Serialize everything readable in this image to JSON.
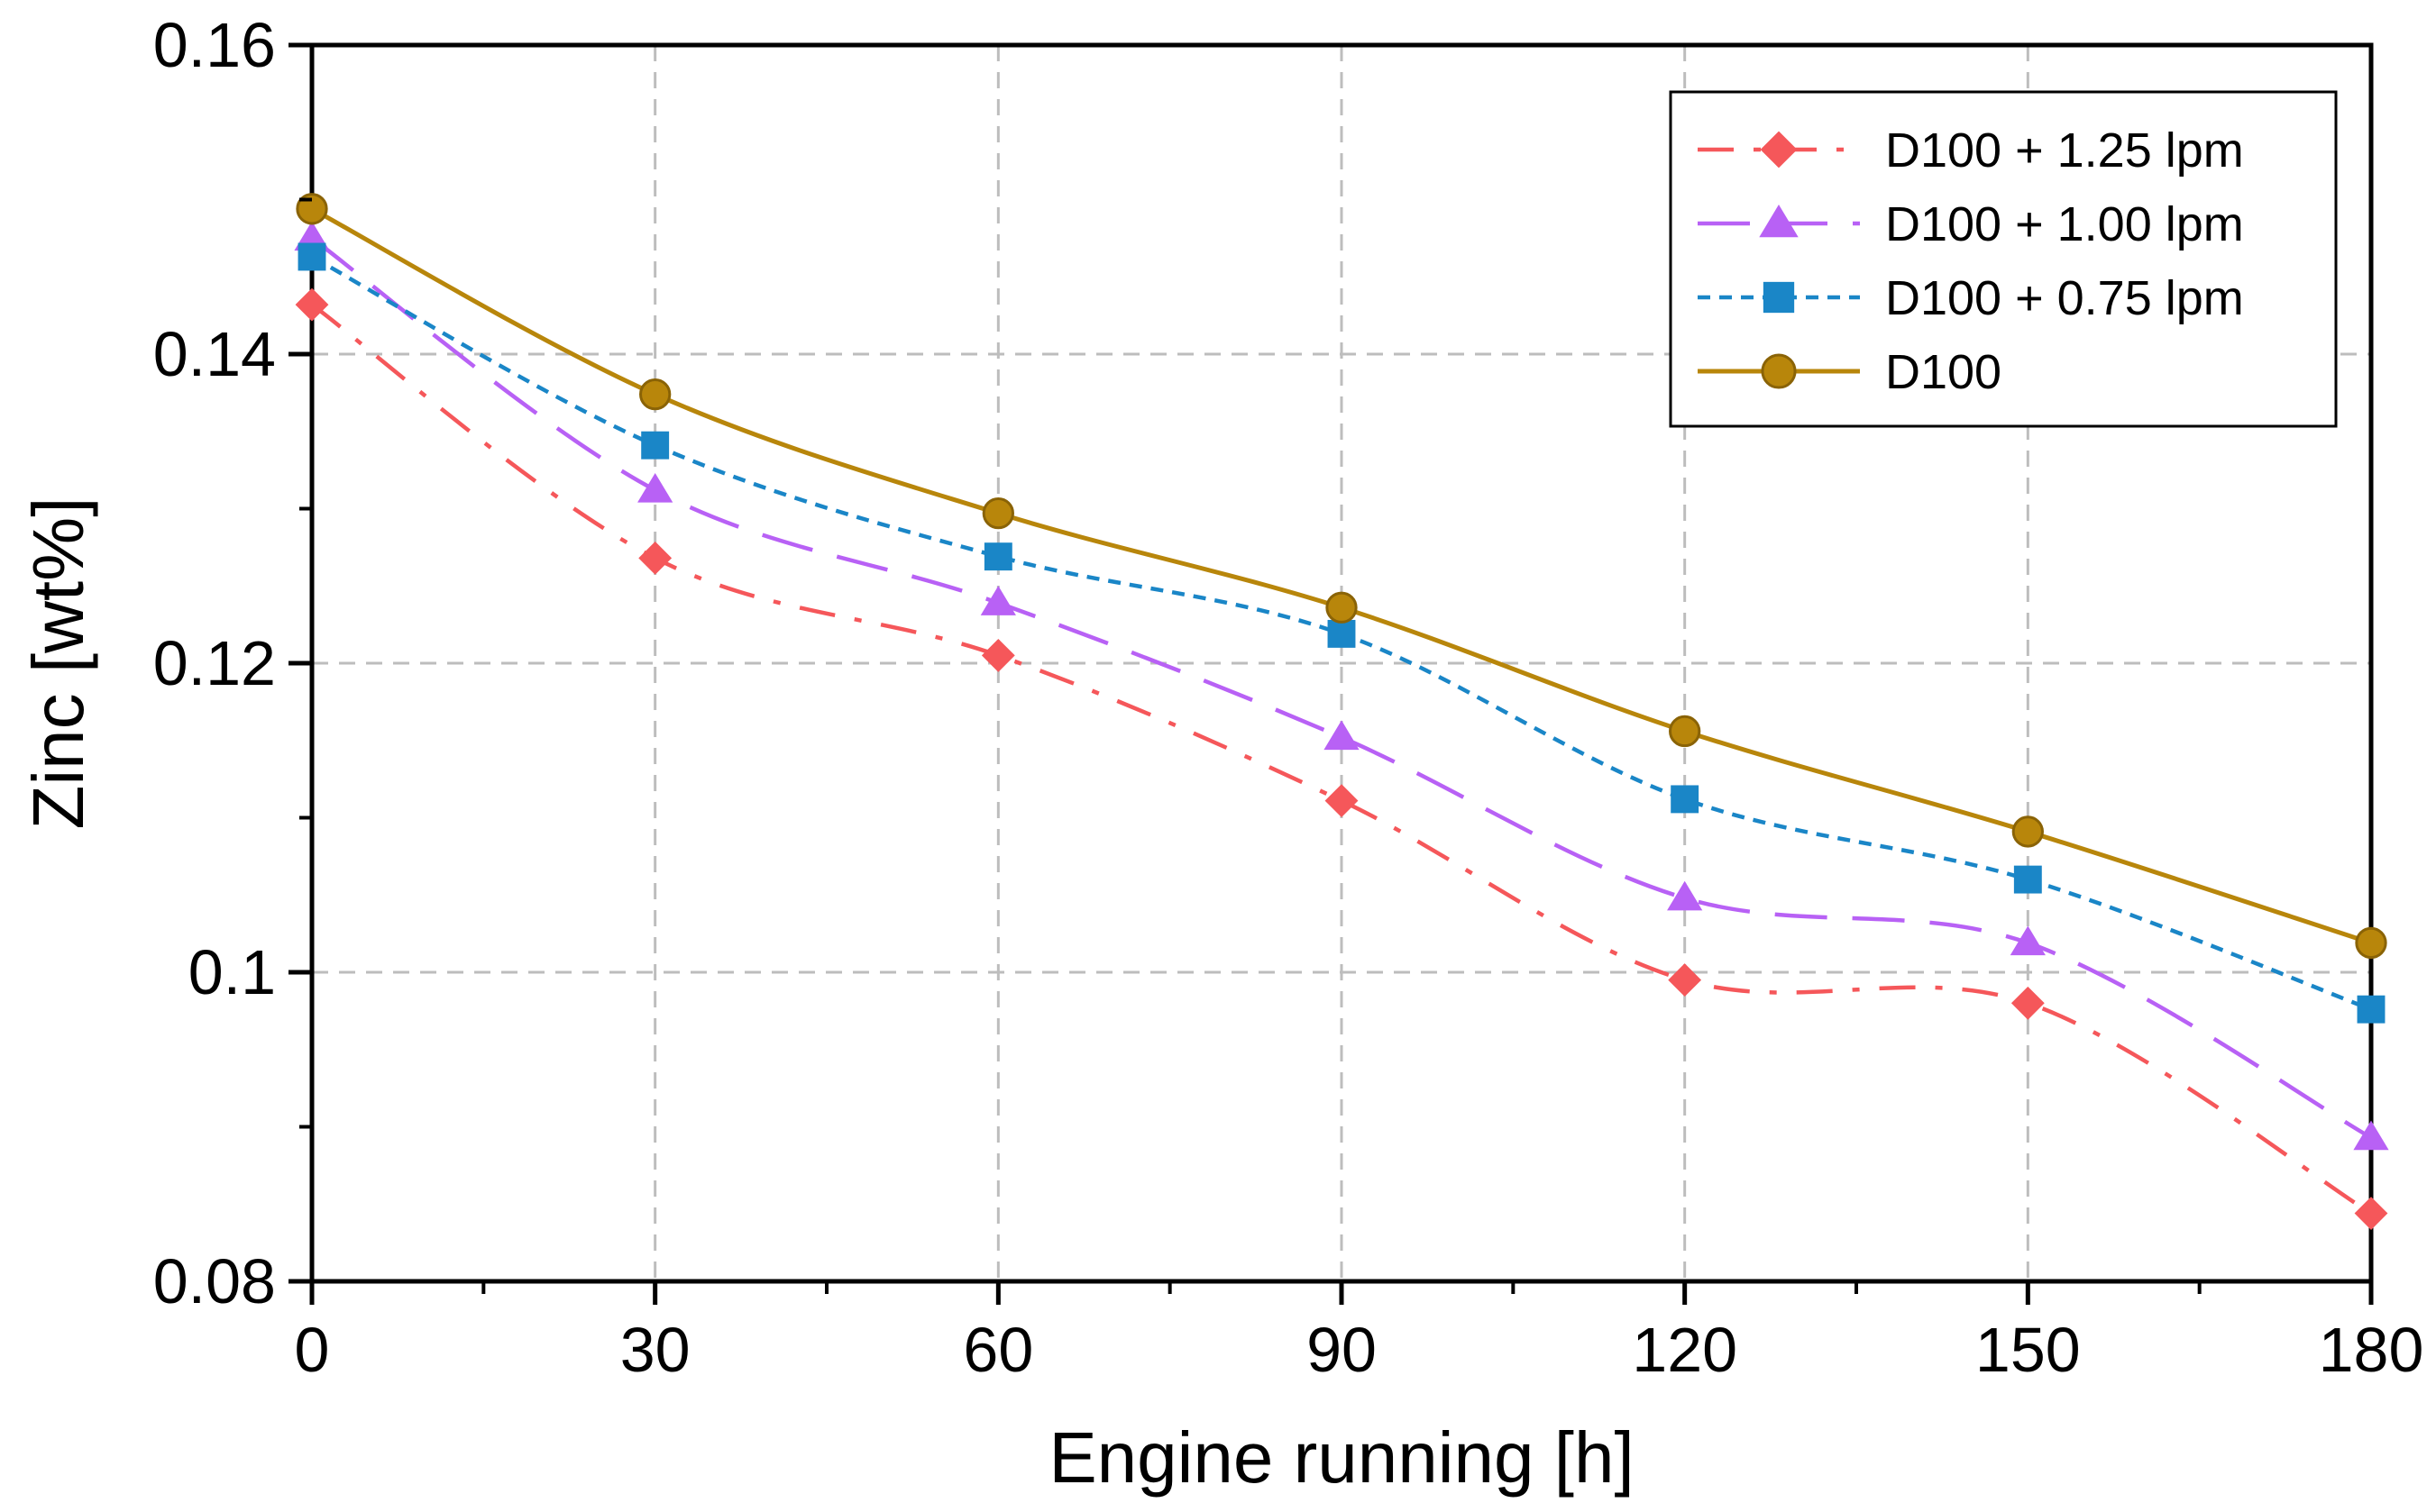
{
  "chart_data": {
    "type": "line",
    "title": "",
    "xlabel": "Engine running [h]",
    "ylabel": "Zinc [wt%]",
    "xlim": [
      0,
      180
    ],
    "ylim": [
      0.08,
      0.16
    ],
    "x": [
      0,
      30,
      60,
      90,
      120,
      150,
      180
    ],
    "x_tick_labels": [
      "0",
      "30",
      "60",
      "90",
      "120",
      "150",
      "180"
    ],
    "y_ticks": [
      0.08,
      0.1,
      0.12,
      0.14,
      0.16
    ],
    "y_tick_labels": [
      "0.08",
      "0.1",
      "0.12",
      "0.14",
      "0.16"
    ],
    "grid": true,
    "legend_position": "top-right",
    "series": [
      {
        "name": "D100 + 1.25 lpm",
        "color": "#f5575a",
        "marker": "diamond",
        "line_style": "dash-dot",
        "values": [
          0.1432,
          0.1268,
          0.1205,
          0.1111,
          0.0995,
          0.098,
          0.0844
        ]
      },
      {
        "name": "D100 + 1.00 lpm",
        "color": "#b861f5",
        "marker": "triangle",
        "line_style": "long-dash",
        "values": [
          0.1475,
          0.1312,
          0.1239,
          0.1152,
          0.1048,
          0.1019,
          0.0893
        ]
      },
      {
        "name": "D100 + 0.75 lpm",
        "color": "#1a86c7",
        "marker": "square",
        "line_style": "short-dash",
        "values": [
          0.1463,
          0.1341,
          0.1269,
          0.1219,
          0.1112,
          0.106,
          0.0976
        ]
      },
      {
        "name": "D100",
        "color": "#b8860b",
        "marker": "circle",
        "line_style": "solid",
        "values": [
          0.1494,
          0.1374,
          0.1297,
          0.1236,
          0.1156,
          0.1091,
          0.1019
        ]
      }
    ]
  }
}
